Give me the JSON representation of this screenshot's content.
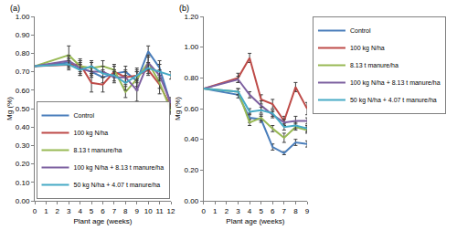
{
  "chart_data": [
    {
      "type": "line",
      "title": "(a)",
      "x_label": "Plant age (weeks)",
      "y_label": "Mg (%)",
      "x": [
        0,
        3,
        4,
        5,
        6,
        7,
        8,
        9,
        10,
        11,
        12
      ],
      "xlim": [
        0,
        12
      ],
      "xticks": [
        0,
        1,
        2,
        3,
        4,
        5,
        6,
        7,
        8,
        9,
        10,
        11,
        12
      ],
      "ylim": [
        0,
        1
      ],
      "yticks": [
        {
          "value": 0,
          "label": "0.00"
        },
        {
          "value": 0.1,
          "label": "0.10"
        },
        {
          "value": 0.2,
          "label": "0.20"
        },
        {
          "value": 0.3,
          "label": "0.30"
        },
        {
          "value": 0.4,
          "label": "0.40"
        },
        {
          "value": 0.5,
          "label": "0.50"
        },
        {
          "value": 0.6,
          "label": "0.60"
        },
        {
          "value": 0.7,
          "label": "0.70"
        },
        {
          "value": 0.8,
          "label": "0.80"
        },
        {
          "value": 0.9,
          "label": "0.90"
        },
        {
          "value": 1,
          "label": "1.00"
        }
      ],
      "grid": false,
      "legend": "lower center",
      "series": [
        {
          "name": "Control",
          "color": "#4a7ebb",
          "values": [
            0.73,
            0.75,
            0.72,
            0.7,
            0.67,
            0.69,
            0.7,
            0.65,
            0.81,
            0.72,
            0.52
          ],
          "errors": [
            0,
            0.03,
            0.04,
            0.02,
            0.03,
            0.02,
            0.03,
            0.05,
            0.03,
            0.04,
            0.02
          ]
        },
        {
          "name": "100 kg N/ha",
          "color": "#be4b48",
          "values": [
            0.73,
            0.74,
            0.74,
            0.64,
            0.63,
            0.7,
            0.67,
            0.68,
            0.71,
            0.63,
            0.51
          ],
          "errors": [
            0,
            0.03,
            0.03,
            0.05,
            0.04,
            0.03,
            0.03,
            0.04,
            0.03,
            0.05,
            0.03
          ]
        },
        {
          "name": "8.13 t manure/ha",
          "color": "#98b954",
          "values": [
            0.73,
            0.79,
            0.73,
            0.72,
            0.73,
            0.71,
            0.59,
            0.66,
            0.75,
            0.64,
            0.49
          ],
          "errors": [
            0,
            0.05,
            0.03,
            0.03,
            0.03,
            0.03,
            0.03,
            0.04,
            0.04,
            0.03,
            0.02
          ]
        },
        {
          "name": "100 kg N/ha + 8.13 t manure/ha",
          "color": "#7d60a0",
          "values": [
            0.73,
            0.76,
            0.72,
            0.7,
            0.7,
            0.67,
            0.67,
            0.6,
            0.75,
            0.68,
            0.53
          ],
          "errors": [
            0,
            0.03,
            0.03,
            0.03,
            0.03,
            0.03,
            0.04,
            0.06,
            0.03,
            0.03,
            0.03
          ]
        },
        {
          "name": "50 kg N/ha + 4.07 t manure/ha",
          "color": "#46aac5",
          "values": [
            0.73,
            0.74,
            0.71,
            0.73,
            0.69,
            0.68,
            0.64,
            0.68,
            0.72,
            0.7,
            0.68
          ],
          "errors": [
            0,
            0.02,
            0.03,
            0.03,
            0.02,
            0.03,
            0.04,
            0.03,
            0.03,
            0.04,
            0.02
          ]
        }
      ]
    },
    {
      "type": "line",
      "title": "(b)",
      "x_label": "Plant age (weeks)",
      "y_label": "Mg (%)",
      "x": [
        0,
        3,
        4,
        5,
        6,
        7,
        8,
        9
      ],
      "xlim": [
        0,
        9
      ],
      "xticks": [
        0,
        1,
        2,
        3,
        4,
        5,
        6,
        7,
        8,
        9
      ],
      "ylim": [
        0,
        1.2
      ],
      "yticks": [
        {
          "value": 0,
          "label": "0.00"
        },
        {
          "value": 0.2,
          "label": "0.20"
        },
        {
          "value": 0.4,
          "label": "0.40"
        },
        {
          "value": 0.6,
          "label": "0.60"
        },
        {
          "value": 0.8,
          "label": "0.80"
        },
        {
          "value": 1,
          "label": "1.00"
        },
        {
          "value": 1.2,
          "label": "1.20"
        }
      ],
      "grid": false,
      "legend": "right",
      "series": [
        {
          "name": "Control",
          "color": "#4a7ebb",
          "values": [
            0.73,
            0.69,
            0.54,
            0.53,
            0.35,
            0.31,
            0.38,
            0.37
          ],
          "errors": [
            0,
            0.02,
            0.03,
            0.02,
            0.02,
            0.01,
            0.02,
            0.02
          ]
        },
        {
          "name": "100 kg N/ha",
          "color": "#be4b48",
          "values": [
            0.73,
            0.8,
            0.93,
            0.66,
            0.63,
            0.52,
            0.74,
            0.6
          ],
          "errors": [
            0,
            0.03,
            0.03,
            0.03,
            0.03,
            0.03,
            0.03,
            0.04
          ]
        },
        {
          "name": "8.13 t manure/ha",
          "color": "#98b954",
          "values": [
            0.73,
            0.71,
            0.51,
            0.54,
            0.47,
            0.41,
            0.48,
            0.46
          ],
          "errors": [
            0,
            0.02,
            0.02,
            0.02,
            0.02,
            0.03,
            0.02,
            0.02
          ]
        },
        {
          "name": "100 kg N/ha + 8.13 t manure/ha",
          "color": "#7d60a0",
          "values": [
            0.73,
            0.79,
            0.69,
            0.62,
            0.56,
            0.51,
            0.52,
            0.52
          ],
          "errors": [
            0,
            0.02,
            0.02,
            0.03,
            0.02,
            0.02,
            0.03,
            0.02
          ]
        },
        {
          "name": "50 kg N/ha + 4.07 t manure/ha",
          "color": "#46aac5",
          "values": [
            0.73,
            0.71,
            0.58,
            0.59,
            0.57,
            0.48,
            0.49,
            0.47
          ],
          "errors": [
            0,
            0.02,
            0.02,
            0.02,
            0.02,
            0.02,
            0.02,
            0.02
          ]
        }
      ]
    }
  ]
}
